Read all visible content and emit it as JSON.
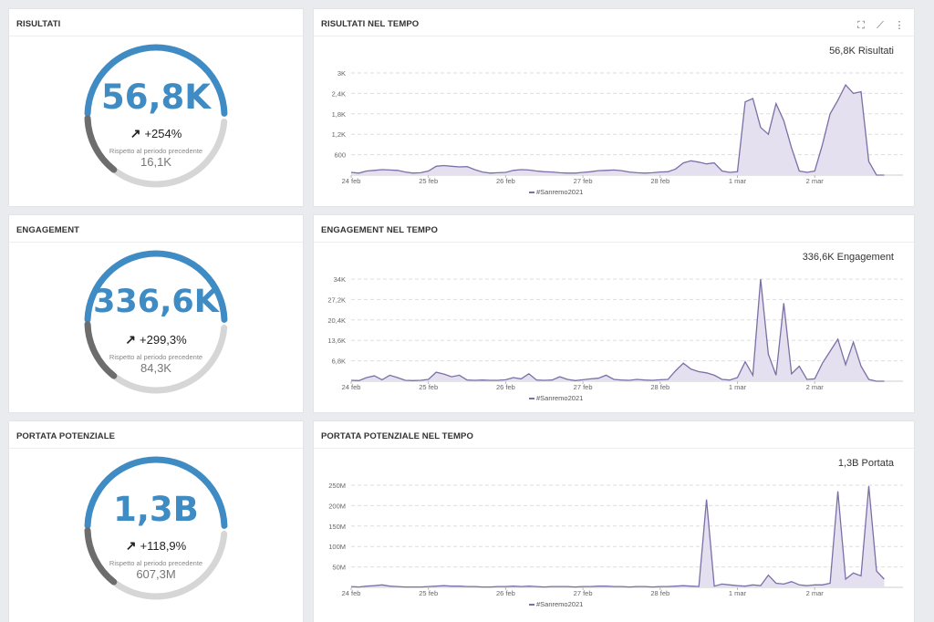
{
  "accent_color": "#3f8bc4",
  "series_color": "#7b6fa6",
  "kpis": [
    {
      "title": "RISULTATI",
      "value": "56,8K",
      "change": "+254%",
      "caption": "Rispetto al periodo precedente",
      "previous": "16,1K",
      "arrow_icon": "arrow-up-right-icon"
    },
    {
      "title": "ENGAGEMENT",
      "value": "336,6K",
      "change": "+299,3%",
      "caption": "Rispetto al periodo precedente",
      "previous": "84,3K",
      "arrow_icon": "arrow-up-right-icon"
    },
    {
      "title": "PORTATA POTENZIALE",
      "value": "1,3B",
      "change": "+118,9%",
      "caption": "Rispetto al periodo precedente",
      "previous": "607,3M",
      "arrow_icon": "arrow-up-right-icon"
    }
  ],
  "toolbar_icons": [
    "fullscreen-icon",
    "line-chart-icon",
    "more-vertical-icon"
  ],
  "chart_data": [
    {
      "type": "area",
      "title": "RISULTATI NEL TEMPO",
      "total": "56,8K Risultati",
      "x_ticks": [
        "24 feb",
        "25 feb",
        "26 feb",
        "27 feb",
        "28 feb",
        "1 mar",
        "2 mar"
      ],
      "y_ticks": [
        "600",
        "1,2K",
        "1,8K",
        "2,4K",
        "3K"
      ],
      "y_tick_values": [
        600,
        1200,
        1800,
        2400,
        3000
      ],
      "ylim": [
        0,
        3000
      ],
      "series": [
        {
          "name": "#Sanremo2021",
          "x": [
            0,
            0.1,
            0.2,
            0.3,
            0.4,
            0.5,
            0.6,
            0.7,
            0.8,
            0.9,
            1.0,
            1.1,
            1.2,
            1.3,
            1.4,
            1.5,
            1.6,
            1.7,
            1.8,
            1.9,
            2.0,
            2.1,
            2.2,
            2.3,
            2.4,
            2.5,
            2.6,
            2.7,
            2.8,
            2.9,
            3.0,
            3.1,
            3.2,
            3.3,
            3.4,
            3.5,
            3.6,
            3.7,
            3.8,
            3.9,
            4.0,
            4.1,
            4.2,
            4.3,
            4.4,
            4.5,
            4.6,
            4.7,
            4.8,
            4.9,
            5.0,
            5.1,
            5.2,
            5.3,
            5.4,
            5.5,
            5.6,
            5.7,
            5.8,
            5.9,
            6.0,
            6.1,
            6.2,
            6.3,
            6.4,
            6.5,
            6.6,
            6.7,
            6.8,
            6.9
          ],
          "values": [
            80,
            60,
            120,
            140,
            160,
            150,
            140,
            90,
            60,
            70,
            120,
            260,
            280,
            260,
            240,
            250,
            160,
            90,
            60,
            70,
            80,
            140,
            160,
            150,
            120,
            100,
            90,
            70,
            60,
            60,
            80,
            100,
            130,
            140,
            150,
            130,
            90,
            70,
            60,
            70,
            90,
            100,
            180,
            360,
            420,
            380,
            330,
            360,
            120,
            80,
            100,
            2150,
            2250,
            1400,
            1200,
            2100,
            1600,
            800,
            120,
            80,
            120,
            900,
            1800,
            2200,
            2650,
            2400,
            2450,
            400,
            0,
            0
          ]
        }
      ]
    },
    {
      "type": "area",
      "title": "ENGAGEMENT NEL TEMPO",
      "total": "336,6K Engagement",
      "x_ticks": [
        "24 feb",
        "25 feb",
        "26 feb",
        "27 feb",
        "28 feb",
        "1 mar",
        "2 mar"
      ],
      "y_ticks": [
        "6,8K",
        "13,6K",
        "20,4K",
        "27,2K",
        "34K"
      ],
      "y_tick_values": [
        6800,
        13600,
        20400,
        27200,
        34000
      ],
      "ylim": [
        0,
        34000
      ],
      "series": [
        {
          "name": "#Sanremo2021",
          "x": [
            0,
            0.1,
            0.2,
            0.3,
            0.4,
            0.5,
            0.6,
            0.7,
            0.8,
            0.9,
            1.0,
            1.1,
            1.2,
            1.3,
            1.4,
            1.5,
            1.6,
            1.7,
            1.8,
            1.9,
            2.0,
            2.1,
            2.2,
            2.3,
            2.4,
            2.5,
            2.6,
            2.7,
            2.8,
            2.9,
            3.0,
            3.1,
            3.2,
            3.3,
            3.4,
            3.5,
            3.6,
            3.7,
            3.8,
            3.9,
            4.0,
            4.1,
            4.2,
            4.3,
            4.4,
            4.5,
            4.6,
            4.7,
            4.8,
            4.9,
            5.0,
            5.1,
            5.2,
            5.3,
            5.4,
            5.5,
            5.6,
            5.7,
            5.8,
            5.9,
            6.0,
            6.1,
            6.2,
            6.3,
            6.4,
            6.5,
            6.6,
            6.7,
            6.8,
            6.9
          ],
          "values": [
            300,
            200,
            1200,
            1800,
            500,
            2000,
            1200,
            300,
            200,
            300,
            600,
            3000,
            2400,
            1500,
            2000,
            400,
            300,
            400,
            300,
            300,
            500,
            1200,
            800,
            2500,
            400,
            300,
            400,
            1500,
            600,
            200,
            500,
            800,
            1000,
            2000,
            600,
            400,
            300,
            600,
            400,
            300,
            500,
            600,
            3500,
            6000,
            4000,
            3200,
            2800,
            2000,
            600,
            400,
            1200,
            6500,
            2000,
            34000,
            9000,
            2000,
            26000,
            2500,
            5000,
            600,
            800,
            6000,
            10000,
            14000,
            5500,
            13000,
            5000,
            600,
            0,
            0
          ]
        }
      ]
    },
    {
      "type": "area",
      "title": "PORTATA POTENZIALE NEL TEMPO",
      "total": "1,3B Portata",
      "x_ticks": [
        "24 feb",
        "25 feb",
        "26 feb",
        "27 feb",
        "28 feb",
        "1 mar",
        "2 mar"
      ],
      "y_ticks": [
        "50M",
        "100M",
        "150M",
        "200M",
        "250M"
      ],
      "y_tick_values": [
        50,
        100,
        150,
        200,
        250
      ],
      "ylim": [
        0,
        250
      ],
      "series": [
        {
          "name": "#Sanremo2021",
          "x": [
            0,
            0.1,
            0.2,
            0.3,
            0.4,
            0.5,
            0.6,
            0.7,
            0.8,
            0.9,
            1.0,
            1.1,
            1.2,
            1.3,
            1.4,
            1.5,
            1.6,
            1.7,
            1.8,
            1.9,
            2.0,
            2.1,
            2.2,
            2.3,
            2.4,
            2.5,
            2.6,
            2.7,
            2.8,
            2.9,
            3.0,
            3.1,
            3.2,
            3.3,
            3.4,
            3.5,
            3.6,
            3.7,
            3.8,
            3.9,
            4.0,
            4.1,
            4.2,
            4.3,
            4.4,
            4.5,
            4.6,
            4.7,
            4.8,
            4.9,
            5.0,
            5.1,
            5.2,
            5.3,
            5.4,
            5.5,
            5.6,
            5.7,
            5.8,
            5.9,
            6.0,
            6.1,
            6.2,
            6.3,
            6.4,
            6.5,
            6.6,
            6.7,
            6.8,
            6.9
          ],
          "values": [
            2,
            1,
            3,
            4,
            6,
            3,
            2,
            1,
            1,
            1,
            2,
            3,
            4,
            3,
            3,
            2,
            2,
            1,
            1,
            2,
            2,
            3,
            2,
            3,
            2,
            1,
            2,
            2,
            2,
            1,
            2,
            2,
            3,
            3,
            2,
            2,
            1,
            2,
            2,
            1,
            2,
            2,
            3,
            4,
            3,
            2,
            215,
            3,
            8,
            6,
            4,
            3,
            6,
            4,
            30,
            10,
            8,
            14,
            6,
            4,
            6,
            6,
            10,
            235,
            20,
            35,
            28,
            248,
            40,
            20
          ]
        }
      ]
    }
  ]
}
